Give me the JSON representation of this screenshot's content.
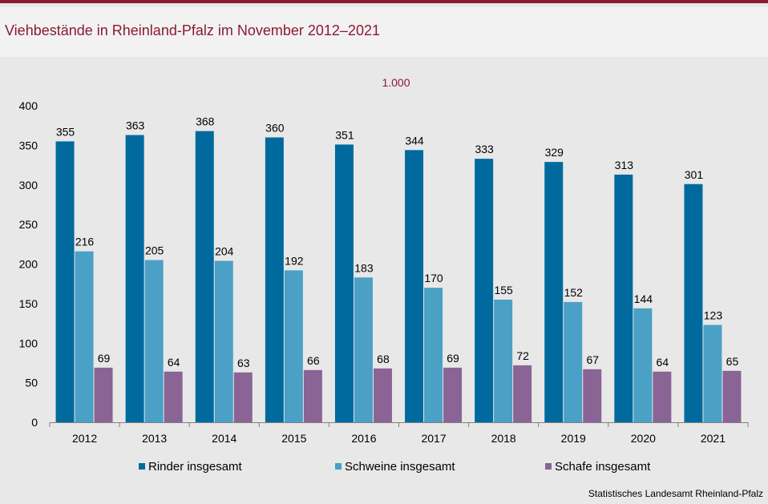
{
  "title": "Viehbestände in Rheinland-Pfalz im November 2012–2021",
  "source": "Statistisches Landesamt  Rheinland-Pfalz",
  "colors": {
    "accent": "#8b1a33",
    "rinder": "#006a9e",
    "schweine": "#4aa0c5",
    "schafe": "#8a6494"
  },
  "chart_data": {
    "type": "bar",
    "unit_label": "1.000",
    "categories": [
      "2012",
      "2013",
      "2014",
      "2015",
      "2016",
      "2017",
      "2018",
      "2019",
      "2020",
      "2021"
    ],
    "series": [
      {
        "name": "Rinder insgesamt",
        "values": [
          355,
          363,
          368,
          360,
          351,
          344,
          333,
          329,
          313,
          301
        ]
      },
      {
        "name": "Schweine insgesamt",
        "values": [
          216,
          205,
          204,
          192,
          183,
          170,
          155,
          152,
          144,
          123
        ]
      },
      {
        "name": "Schafe insgesamt",
        "values": [
          69,
          64,
          63,
          66,
          68,
          69,
          72,
          67,
          64,
          65
        ]
      }
    ],
    "yticks": [
      "0",
      "50",
      "100",
      "150",
      "200",
      "250",
      "300",
      "350",
      "400"
    ],
    "ylim": [
      0,
      400
    ],
    "grid": false,
    "legend_position": "bottom"
  }
}
